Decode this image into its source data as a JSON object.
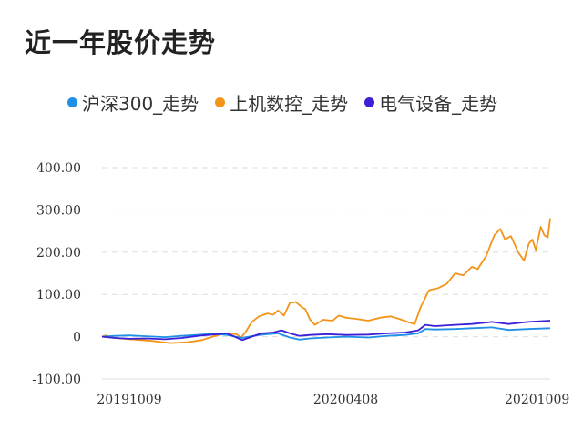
{
  "title": "近一年股价走势",
  "colors": {
    "hs300": "#1e90e6",
    "sjsk": "#f39418",
    "dqsb": "#3a20d6",
    "grid": "#dddddd"
  },
  "chart_data": {
    "type": "line",
    "title": "近一年股价走势",
    "ylim": [
      -100,
      400
    ],
    "yticks": [
      400,
      300,
      200,
      100,
      0,
      -100
    ],
    "ytick_labels": [
      "400.00",
      "300.00",
      "200.00",
      "100.00",
      "0",
      "-100.00"
    ],
    "xlim": [
      "2019-10-09",
      "2020-10-20"
    ],
    "xticks": [
      "2019-10-09",
      "2020-04-08",
      "2020-10-09"
    ],
    "xtick_labels": [
      "20191009",
      "20200408",
      "20201009"
    ],
    "grid": "horizontal-dashed",
    "legend_position": "top",
    "series": [
      {
        "name": "沪深300_走势",
        "color": "#1e90e6",
        "points": [
          [
            "2019-10-09",
            0
          ],
          [
            "2019-10-20",
            2
          ],
          [
            "2019-11-01",
            3
          ],
          [
            "2019-11-15",
            1
          ],
          [
            "2019-12-01",
            -1
          ],
          [
            "2019-12-15",
            2
          ],
          [
            "2020-01-01",
            5
          ],
          [
            "2020-01-10",
            7
          ],
          [
            "2020-01-22",
            4
          ],
          [
            "2020-02-04",
            -3
          ],
          [
            "2020-02-15",
            3
          ],
          [
            "2020-02-25",
            6
          ],
          [
            "2020-03-05",
            8
          ],
          [
            "2020-03-15",
            -2
          ],
          [
            "2020-03-23",
            -7
          ],
          [
            "2020-04-01",
            -4
          ],
          [
            "2020-04-15",
            -2
          ],
          [
            "2020-05-01",
            0
          ],
          [
            "2020-05-20",
            -2
          ],
          [
            "2020-06-05",
            2
          ],
          [
            "2020-06-20",
            4
          ],
          [
            "2020-07-01",
            8
          ],
          [
            "2020-07-07",
            18
          ],
          [
            "2020-07-15",
            17
          ],
          [
            "2020-08-01",
            18
          ],
          [
            "2020-08-15",
            20
          ],
          [
            "2020-09-01",
            22
          ],
          [
            "2020-09-15",
            16
          ],
          [
            "2020-10-01",
            18
          ],
          [
            "2020-10-20",
            20
          ]
        ]
      },
      {
        "name": "上机数控_走势",
        "color": "#f39418",
        "points": [
          [
            "2019-10-09",
            0
          ],
          [
            "2019-10-12",
            3
          ],
          [
            "2019-10-20",
            -3
          ],
          [
            "2019-11-01",
            -6
          ],
          [
            "2019-11-20",
            -10
          ],
          [
            "2019-12-05",
            -15
          ],
          [
            "2019-12-20",
            -13
          ],
          [
            "2020-01-01",
            -8
          ],
          [
            "2020-01-10",
            0
          ],
          [
            "2020-01-15",
            4
          ],
          [
            "2020-01-20",
            8
          ],
          [
            "2020-01-30",
            6
          ],
          [
            "2020-02-03",
            -2
          ],
          [
            "2020-02-07",
            12
          ],
          [
            "2020-02-12",
            35
          ],
          [
            "2020-02-18",
            48
          ],
          [
            "2020-02-25",
            55
          ],
          [
            "2020-03-01",
            52
          ],
          [
            "2020-03-05",
            62
          ],
          [
            "2020-03-10",
            50
          ],
          [
            "2020-03-15",
            80
          ],
          [
            "2020-03-20",
            82
          ],
          [
            "2020-03-25",
            70
          ],
          [
            "2020-03-28",
            65
          ],
          [
            "2020-04-01",
            40
          ],
          [
            "2020-04-05",
            28
          ],
          [
            "2020-04-12",
            40
          ],
          [
            "2020-04-20",
            38
          ],
          [
            "2020-04-25",
            50
          ],
          [
            "2020-05-01",
            45
          ],
          [
            "2020-05-10",
            42
          ],
          [
            "2020-05-20",
            38
          ],
          [
            "2020-05-30",
            45
          ],
          [
            "2020-06-08",
            48
          ],
          [
            "2020-06-15",
            42
          ],
          [
            "2020-06-22",
            35
          ],
          [
            "2020-06-28",
            30
          ],
          [
            "2020-07-03",
            70
          ],
          [
            "2020-07-10",
            110
          ],
          [
            "2020-07-18",
            115
          ],
          [
            "2020-07-25",
            125
          ],
          [
            "2020-08-01",
            150
          ],
          [
            "2020-08-08",
            145
          ],
          [
            "2020-08-15",
            165
          ],
          [
            "2020-08-20",
            160
          ],
          [
            "2020-08-27",
            190
          ],
          [
            "2020-09-03",
            240
          ],
          [
            "2020-09-08",
            255
          ],
          [
            "2020-09-12",
            230
          ],
          [
            "2020-09-17",
            238
          ],
          [
            "2020-09-23",
            200
          ],
          [
            "2020-09-28",
            180
          ],
          [
            "2020-10-02",
            220
          ],
          [
            "2020-10-05",
            230
          ],
          [
            "2020-10-08",
            205
          ],
          [
            "2020-10-12",
            260
          ],
          [
            "2020-10-15",
            240
          ],
          [
            "2020-10-18",
            235
          ],
          [
            "2020-10-20",
            280
          ]
        ]
      },
      {
        "name": "电气设备_走势",
        "color": "#3a20d6",
        "points": [
          [
            "2019-10-09",
            0
          ],
          [
            "2019-10-20",
            -3
          ],
          [
            "2019-11-01",
            -5
          ],
          [
            "2019-11-15",
            -4
          ],
          [
            "2019-12-01",
            -6
          ],
          [
            "2019-12-15",
            -3
          ],
          [
            "2020-01-01",
            3
          ],
          [
            "2020-01-10",
            5
          ],
          [
            "2020-01-22",
            8
          ],
          [
            "2020-02-04",
            -8
          ],
          [
            "2020-02-12",
            0
          ],
          [
            "2020-02-20",
            8
          ],
          [
            "2020-03-01",
            10
          ],
          [
            "2020-03-08",
            15
          ],
          [
            "2020-03-15",
            8
          ],
          [
            "2020-03-23",
            2
          ],
          [
            "2020-04-01",
            4
          ],
          [
            "2020-04-15",
            6
          ],
          [
            "2020-05-01",
            4
          ],
          [
            "2020-05-20",
            5
          ],
          [
            "2020-06-05",
            8
          ],
          [
            "2020-06-20",
            10
          ],
          [
            "2020-07-01",
            15
          ],
          [
            "2020-07-07",
            28
          ],
          [
            "2020-07-15",
            25
          ],
          [
            "2020-08-01",
            28
          ],
          [
            "2020-08-15",
            30
          ],
          [
            "2020-09-01",
            35
          ],
          [
            "2020-09-15",
            30
          ],
          [
            "2020-10-01",
            35
          ],
          [
            "2020-10-20",
            38
          ]
        ]
      }
    ]
  }
}
